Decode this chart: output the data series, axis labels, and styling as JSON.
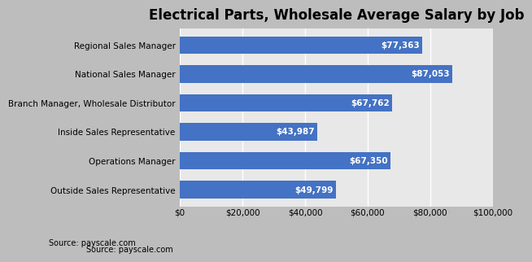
{
  "title": "Electrical Parts, Wholesale Average Salary by Job",
  "source": "Source: payscale.com",
  "categories": [
    "Outside Sales Representative",
    "Operations Manager",
    "Inside Sales Representative",
    "Branch Manager, Wholesale Distributor",
    "National Sales Manager",
    "Regional Sales Manager"
  ],
  "values": [
    49799,
    67350,
    43987,
    67762,
    87053,
    77363
  ],
  "bar_color": "#4472C4",
  "label_color": "#FFFFFF",
  "background_color": "#BDBDBD",
  "axes_bg_color": "#E8E8E8",
  "xlim": [
    0,
    100000
  ],
  "xticks": [
    0,
    20000,
    40000,
    60000,
    80000,
    100000
  ],
  "xtick_labels": [
    "$0",
    "$20,000",
    "$40,000",
    "$60,000",
    "$80,000",
    "$100,000"
  ],
  "title_fontsize": 12,
  "label_fontsize": 7.5,
  "tick_fontsize": 7.5,
  "source_fontsize": 7
}
